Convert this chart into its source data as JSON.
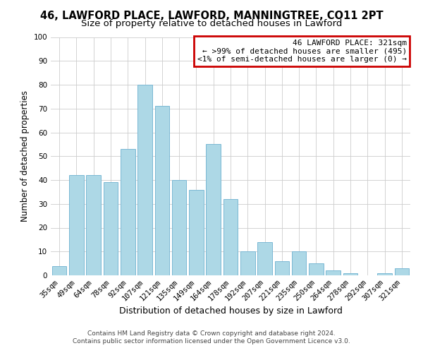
{
  "title": "46, LAWFORD PLACE, LAWFORD, MANNINGTREE, CO11 2PT",
  "subtitle": "Size of property relative to detached houses in Lawford",
  "xlabel": "Distribution of detached houses by size in Lawford",
  "ylabel": "Number of detached properties",
  "categories": [
    "35sqm",
    "49sqm",
    "64sqm",
    "78sqm",
    "92sqm",
    "107sqm",
    "121sqm",
    "135sqm",
    "149sqm",
    "164sqm",
    "178sqm",
    "192sqm",
    "207sqm",
    "221sqm",
    "235sqm",
    "250sqm",
    "264sqm",
    "278sqm",
    "292sqm",
    "307sqm",
    "321sqm"
  ],
  "values": [
    4,
    42,
    42,
    39,
    53,
    80,
    71,
    40,
    36,
    55,
    32,
    10,
    14,
    6,
    10,
    5,
    2,
    1,
    0,
    1,
    3
  ],
  "bar_color": "#add8e6",
  "bar_edge_color": "#7ab8d4",
  "ylim": [
    0,
    100
  ],
  "yticks": [
    0,
    10,
    20,
    30,
    40,
    50,
    60,
    70,
    80,
    90,
    100
  ],
  "legend_title": "46 LAWFORD PLACE: 321sqm",
  "legend_line1": "← >99% of detached houses are smaller (495)",
  "legend_line2": "<1% of semi-detached houses are larger (0) →",
  "legend_box_edge_color": "#cc0000",
  "grid_color": "#cccccc",
  "footer_line1": "Contains HM Land Registry data © Crown copyright and database right 2024.",
  "footer_line2": "Contains public sector information licensed under the Open Government Licence v3.0.",
  "bg_color": "#ffffff",
  "title_fontsize": 10.5,
  "subtitle_fontsize": 9.5,
  "xlabel_fontsize": 9,
  "ylabel_fontsize": 8.5,
  "tick_fontsize": 7.5,
  "legend_fontsize": 8,
  "footer_fontsize": 6.5
}
